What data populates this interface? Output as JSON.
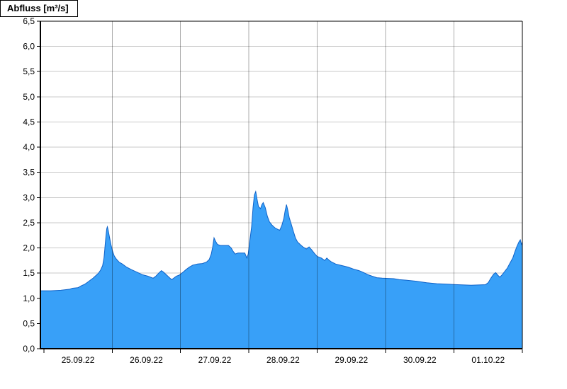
{
  "header": {
    "title": "Abfluss [m³/s]"
  },
  "chart_data": {
    "type": "area",
    "title": "Abfluss [m³/s]",
    "xlabel": "",
    "ylabel": "Abfluss [m³/s]",
    "ylim": [
      0.0,
      6.5
    ],
    "ytick_step": 0.5,
    "ytick_labels": [
      "0,0",
      "0,5",
      "1,0",
      "1,5",
      "2,0",
      "2,5",
      "3,0",
      "3,5",
      "4,0",
      "4,5",
      "5,0",
      "5,5",
      "6,0",
      "6,5"
    ],
    "xlim_days": [
      -0.05,
      7.0
    ],
    "x_unit_note": "days since 25.09.2022 00:00",
    "xtick_day_boundaries": [
      0,
      1,
      2,
      3,
      4,
      5,
      6,
      7
    ],
    "day_gridlines": [
      1,
      2,
      3,
      4,
      5,
      6
    ],
    "xtick_labels": [
      "25.09.22",
      "26.09.22",
      "27.09.22",
      "28.09.22",
      "29.09.22",
      "30.09.22",
      "01.10.22"
    ],
    "xtick_label_positions": [
      0.5,
      1.5,
      2.5,
      3.5,
      4.5,
      5.5,
      6.5
    ],
    "grid": true,
    "legend": false,
    "colors": {
      "area_fill": "#38a0f8",
      "area_stroke": "#0f62c8",
      "h_grid": "#c8c8c8",
      "day_grid": "#000000",
      "day_grid_opacity": 0.33,
      "axis": "#000000",
      "background": "#ffffff"
    },
    "series": [
      {
        "name": "Abfluss",
        "unit": "m³/s",
        "points": [
          [
            -0.05,
            1.15
          ],
          [
            0.1,
            1.15
          ],
          [
            0.25,
            1.16
          ],
          [
            0.38,
            1.18
          ],
          [
            0.42,
            1.2
          ],
          [
            0.5,
            1.21
          ],
          [
            0.55,
            1.25
          ],
          [
            0.6,
            1.28
          ],
          [
            0.64,
            1.32
          ],
          [
            0.68,
            1.36
          ],
          [
            0.72,
            1.4
          ],
          [
            0.76,
            1.45
          ],
          [
            0.8,
            1.5
          ],
          [
            0.83,
            1.56
          ],
          [
            0.86,
            1.65
          ],
          [
            0.88,
            1.8
          ],
          [
            0.89,
            1.95
          ],
          [
            0.9,
            2.1
          ],
          [
            0.91,
            2.25
          ],
          [
            0.92,
            2.38
          ],
          [
            0.93,
            2.42
          ],
          [
            0.94,
            2.36
          ],
          [
            0.96,
            2.22
          ],
          [
            0.98,
            2.08
          ],
          [
            1.0,
            1.96
          ],
          [
            1.03,
            1.84
          ],
          [
            1.06,
            1.78
          ],
          [
            1.1,
            1.72
          ],
          [
            1.15,
            1.68
          ],
          [
            1.21,
            1.62
          ],
          [
            1.28,
            1.57
          ],
          [
            1.36,
            1.52
          ],
          [
            1.44,
            1.47
          ],
          [
            1.52,
            1.44
          ],
          [
            1.6,
            1.4
          ],
          [
            1.64,
            1.44
          ],
          [
            1.68,
            1.5
          ],
          [
            1.72,
            1.55
          ],
          [
            1.75,
            1.52
          ],
          [
            1.79,
            1.47
          ],
          [
            1.83,
            1.42
          ],
          [
            1.87,
            1.37
          ],
          [
            1.9,
            1.4
          ],
          [
            1.94,
            1.44
          ],
          [
            1.98,
            1.46
          ],
          [
            2.03,
            1.51
          ],
          [
            2.08,
            1.57
          ],
          [
            2.13,
            1.62
          ],
          [
            2.18,
            1.66
          ],
          [
            2.25,
            1.68
          ],
          [
            2.32,
            1.69
          ],
          [
            2.38,
            1.72
          ],
          [
            2.42,
            1.77
          ],
          [
            2.45,
            1.88
          ],
          [
            2.47,
            2.02
          ],
          [
            2.49,
            2.2
          ],
          [
            2.51,
            2.14
          ],
          [
            2.54,
            2.07
          ],
          [
            2.58,
            2.05
          ],
          [
            2.7,
            2.05
          ],
          [
            2.74,
            2.0
          ],
          [
            2.77,
            1.93
          ],
          [
            2.8,
            1.88
          ],
          [
            2.84,
            1.9
          ],
          [
            2.94,
            1.9
          ],
          [
            2.97,
            1.8
          ],
          [
            2.99,
            1.88
          ],
          [
            3.01,
            2.1
          ],
          [
            3.04,
            2.42
          ],
          [
            3.06,
            2.8
          ],
          [
            3.08,
            3.05
          ],
          [
            3.1,
            3.12
          ],
          [
            3.12,
            2.96
          ],
          [
            3.14,
            2.82
          ],
          [
            3.17,
            2.78
          ],
          [
            3.19,
            2.86
          ],
          [
            3.21,
            2.9
          ],
          [
            3.24,
            2.8
          ],
          [
            3.27,
            2.63
          ],
          [
            3.3,
            2.52
          ],
          [
            3.34,
            2.45
          ],
          [
            3.38,
            2.4
          ],
          [
            3.42,
            2.37
          ],
          [
            3.45,
            2.35
          ],
          [
            3.48,
            2.44
          ],
          [
            3.51,
            2.58
          ],
          [
            3.53,
            2.74
          ],
          [
            3.55,
            2.86
          ],
          [
            3.57,
            2.74
          ],
          [
            3.59,
            2.6
          ],
          [
            3.62,
            2.47
          ],
          [
            3.65,
            2.33
          ],
          [
            3.68,
            2.2
          ],
          [
            3.71,
            2.12
          ],
          [
            3.75,
            2.07
          ],
          [
            3.79,
            2.02
          ],
          [
            3.84,
            1.98
          ],
          [
            3.88,
            2.02
          ],
          [
            3.92,
            1.96
          ],
          [
            3.96,
            1.89
          ],
          [
            4.0,
            1.83
          ],
          [
            4.06,
            1.8
          ],
          [
            4.11,
            1.75
          ],
          [
            4.14,
            1.8
          ],
          [
            4.17,
            1.76
          ],
          [
            4.21,
            1.72
          ],
          [
            4.27,
            1.68
          ],
          [
            4.36,
            1.65
          ],
          [
            4.45,
            1.62
          ],
          [
            4.53,
            1.58
          ],
          [
            4.61,
            1.55
          ],
          [
            4.68,
            1.51
          ],
          [
            4.74,
            1.47
          ],
          [
            4.8,
            1.44
          ],
          [
            4.87,
            1.41
          ],
          [
            4.95,
            1.4
          ],
          [
            5.12,
            1.39
          ],
          [
            5.2,
            1.37
          ],
          [
            5.3,
            1.36
          ],
          [
            5.45,
            1.34
          ],
          [
            5.6,
            1.31
          ],
          [
            5.75,
            1.29
          ],
          [
            5.9,
            1.28
          ],
          [
            6.05,
            1.27
          ],
          [
            6.25,
            1.26
          ],
          [
            6.46,
            1.27
          ],
          [
            6.5,
            1.31
          ],
          [
            6.54,
            1.4
          ],
          [
            6.58,
            1.48
          ],
          [
            6.61,
            1.51
          ],
          [
            6.64,
            1.46
          ],
          [
            6.67,
            1.42
          ],
          [
            6.7,
            1.46
          ],
          [
            6.74,
            1.53
          ],
          [
            6.78,
            1.6
          ],
          [
            6.82,
            1.7
          ],
          [
            6.86,
            1.8
          ],
          [
            6.89,
            1.92
          ],
          [
            6.92,
            2.03
          ],
          [
            6.95,
            2.12
          ],
          [
            6.97,
            2.16
          ],
          [
            6.99,
            2.06
          ],
          [
            7.0,
            2.12
          ]
        ]
      }
    ]
  }
}
